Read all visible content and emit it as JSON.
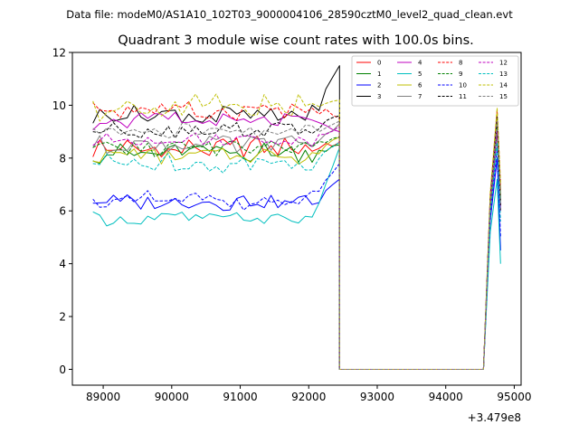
{
  "suptitle": "Data file: modeM0/AS1A10_102T03_9000004106_28590cztM0_level2_quad_clean.evt",
  "chart_data": {
    "type": "line",
    "title": "Quadrant 3 module wise count rates with 100.0s bins.",
    "xlabel": "",
    "ylabel": "",
    "x_offset_label": "+3.479e8",
    "xlim": [
      88550,
      95100
    ],
    "ylim": [
      -0.6,
      12.0
    ],
    "x_ticks": [
      89000,
      90000,
      91000,
      92000,
      93000,
      94000,
      95000
    ],
    "x_tick_labels": [
      "89000",
      "90000",
      "91000",
      "92000",
      "93000",
      "94000",
      "95000"
    ],
    "y_ticks": [
      0,
      2,
      4,
      6,
      8,
      10,
      12
    ],
    "y_tick_labels": [
      "0",
      "2",
      "4",
      "6",
      "8",
      "10",
      "12"
    ],
    "legend_position": "top-right",
    "legend_columns": 4,
    "x_active_start": 88850,
    "x_active_step": 100,
    "active_count": 37,
    "x_gap_start": 92450,
    "x_gap_end": 94550,
    "x_tail": [
      94650,
      94750,
      94800
    ],
    "series": [
      {
        "name": "0",
        "color": "#ff0000",
        "dash": "solid",
        "base": 8.4,
        "amp": 0.35,
        "pre_end": 8.6,
        "tail": [
          6.2,
          9.2,
          6.8
        ]
      },
      {
        "name": "1",
        "color": "#008000",
        "dash": "solid",
        "base": 8.2,
        "amp": 0.3,
        "pre_end": 8.5,
        "tail": [
          6.0,
          9.0,
          6.4
        ]
      },
      {
        "name": "2",
        "color": "#0000ff",
        "dash": "solid",
        "base": 6.3,
        "amp": 0.25,
        "pre_end": 7.2,
        "tail": [
          5.6,
          8.0,
          4.5
        ]
      },
      {
        "name": "3",
        "color": "#000000",
        "dash": "solid",
        "base": 9.6,
        "amp": 0.3,
        "pre_end": 11.5,
        "tail": [
          6.5,
          9.5,
          6.0
        ]
      },
      {
        "name": "4",
        "color": "#bf00bf",
        "dash": "solid",
        "base": 9.4,
        "amp": 0.25,
        "pre_end": 9.0,
        "tail": [
          6.4,
          9.4,
          6.2
        ]
      },
      {
        "name": "5",
        "color": "#00bfbf",
        "dash": "solid",
        "base": 5.7,
        "amp": 0.2,
        "pre_end": 8.4,
        "tail": [
          5.2,
          7.2,
          4.0
        ]
      },
      {
        "name": "6",
        "color": "#bfbf00",
        "dash": "solid",
        "base": 8.1,
        "amp": 0.3,
        "pre_end": 8.8,
        "tail": [
          6.0,
          9.6,
          6.6
        ]
      },
      {
        "name": "7",
        "color": "#808080",
        "dash": "solid",
        "base": 8.5,
        "amp": 0.3,
        "pre_end": 9.3,
        "tail": [
          6.3,
          9.2,
          6.4
        ]
      },
      {
        "name": "8",
        "color": "#ff0000",
        "dash": "dashed",
        "base": 9.8,
        "amp": 0.3,
        "pre_end": 9.5,
        "tail": [
          6.6,
          9.8,
          7.0
        ]
      },
      {
        "name": "9",
        "color": "#008000",
        "dash": "dashed",
        "base": 8.4,
        "amp": 0.3,
        "pre_end": 8.8,
        "tail": [
          6.1,
          9.3,
          6.5
        ]
      },
      {
        "name": "10",
        "color": "#0000ff",
        "dash": "dashed",
        "base": 6.4,
        "amp": 0.25,
        "pre_end": 7.8,
        "tail": [
          5.8,
          8.4,
          5.0
        ]
      },
      {
        "name": "11",
        "color": "#000000",
        "dash": "dashed",
        "base": 9.1,
        "amp": 0.25,
        "pre_end": 9.6,
        "tail": [
          6.4,
          9.6,
          6.2
        ]
      },
      {
        "name": "12",
        "color": "#bf00bf",
        "dash": "dashed",
        "base": 8.7,
        "amp": 0.25,
        "pre_end": 9.2,
        "tail": [
          6.2,
          9.0,
          6.0
        ]
      },
      {
        "name": "13",
        "color": "#00bfbf",
        "dash": "dashed",
        "base": 7.8,
        "amp": 0.3,
        "pre_end": 8.6,
        "tail": [
          5.8,
          8.6,
          5.6
        ]
      },
      {
        "name": "14",
        "color": "#bfbf00",
        "dash": "dashed",
        "base": 9.9,
        "amp": 0.45,
        "pre_end": 10.2,
        "tail": [
          6.7,
          9.9,
          7.0
        ]
      },
      {
        "name": "15",
        "color": "#808080",
        "dash": "dashed",
        "base": 9.0,
        "amp": 0.25,
        "pre_end": 9.4,
        "tail": [
          6.3,
          9.4,
          6.3
        ]
      }
    ]
  }
}
